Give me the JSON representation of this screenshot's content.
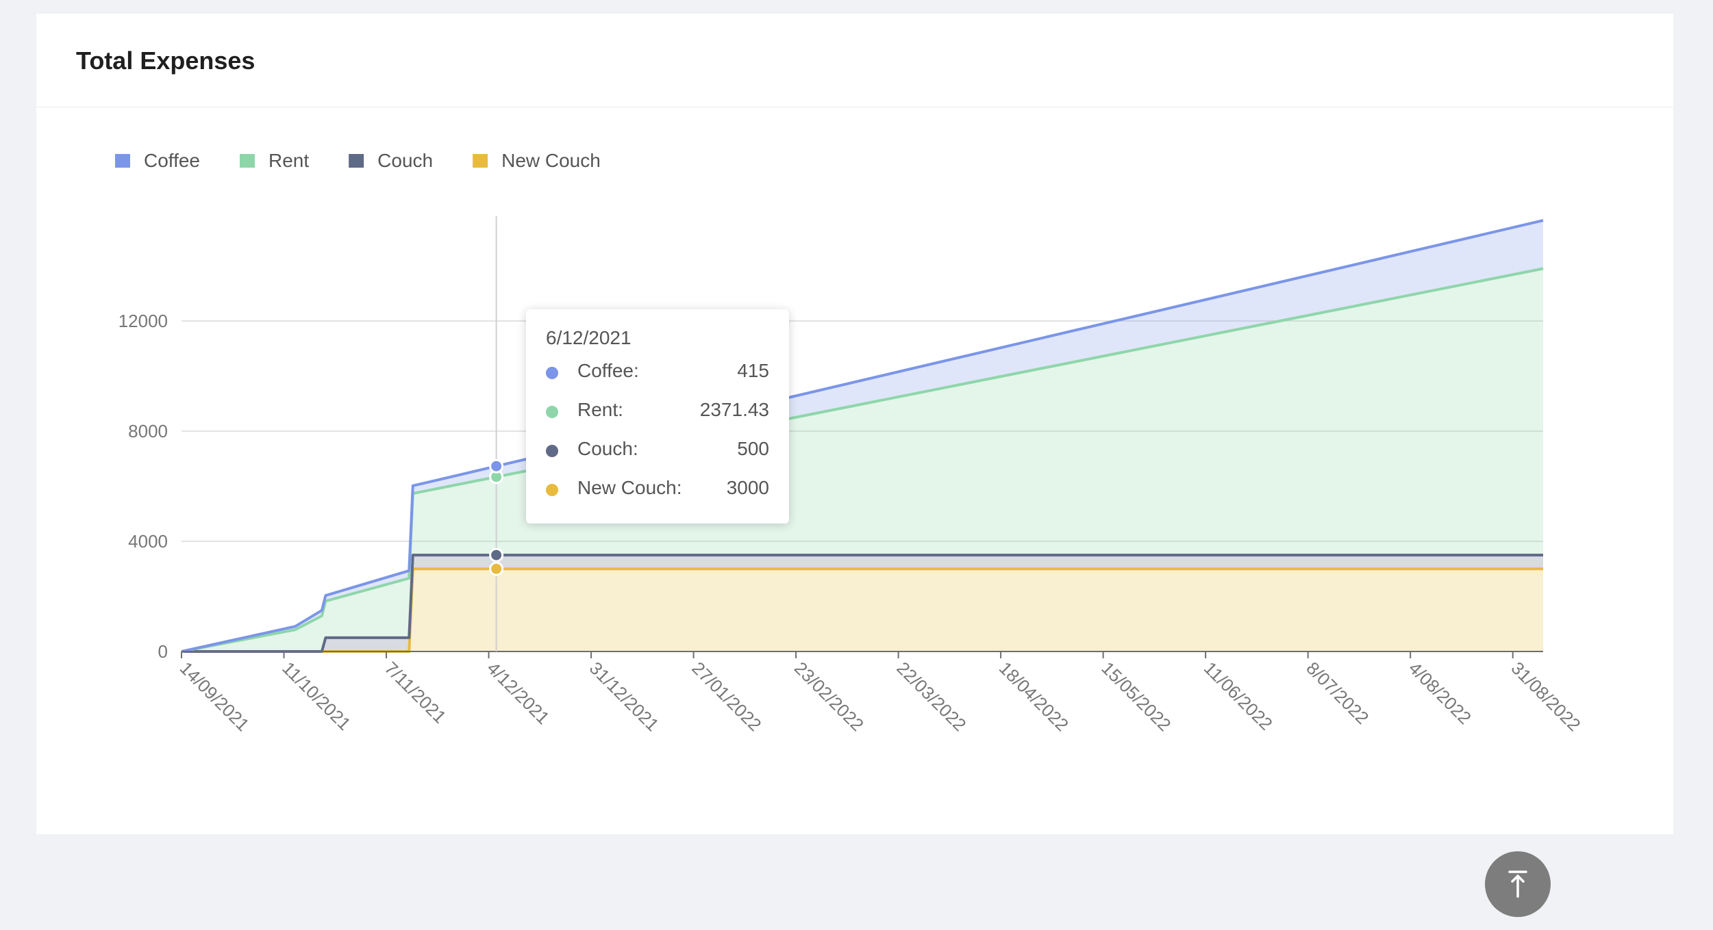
{
  "card": {
    "title": "Total Expenses"
  },
  "chart_data": {
    "type": "area",
    "stacked": true,
    "title": "",
    "xlabel": "",
    "ylabel": "",
    "x_ticks": [
      "14/09/2021",
      "11/10/2021",
      "7/11/2021",
      "4/12/2021",
      "31/12/2021",
      "27/01/2022",
      "23/02/2022",
      "22/03/2022",
      "18/04/2022",
      "15/05/2022",
      "11/06/2022",
      "8/07/2022",
      "4/08/2022",
      "31/08/2022"
    ],
    "x_range": [
      "14/09/2021",
      "8/09/2022"
    ],
    "y_ticks": [
      0,
      4000,
      8000,
      12000
    ],
    "ylim": [
      0,
      15800
    ],
    "grid": true,
    "legend_position": "top-left",
    "series": [
      {
        "name": "New Couch",
        "color": "#e8bb3f",
        "points": [
          [
            "14/09/2021",
            0
          ],
          [
            "13/11/2021",
            0
          ],
          [
            "14/11/2021",
            3000
          ],
          [
            "8/09/2022",
            3000
          ]
        ]
      },
      {
        "name": "Couch",
        "color": "#5f6a86",
        "points": [
          [
            "14/09/2021",
            0
          ],
          [
            "21/10/2021",
            0
          ],
          [
            "22/10/2021",
            500
          ],
          [
            "8/09/2022",
            500
          ]
        ]
      },
      {
        "name": "Rent",
        "color": "#8ed6a9",
        "points": [
          [
            "14/09/2021",
            0
          ],
          [
            "14/10/2021",
            792
          ],
          [
            "21/10/2021",
            1292
          ],
          [
            "13/11/2021",
            2158
          ],
          [
            "14/11/2021",
            2236
          ],
          [
            "8/09/2022",
            10400
          ]
        ]
      },
      {
        "name": "Coffee",
        "color": "#7b95e8",
        "points": [
          [
            "14/09/2021",
            0
          ],
          [
            "14/10/2021",
            120
          ],
          [
            "21/10/2021",
            200
          ],
          [
            "13/11/2021",
            275
          ],
          [
            "14/11/2021",
            280
          ],
          [
            "8/09/2022",
            1750
          ]
        ]
      }
    ],
    "legend_order": [
      "Coffee",
      "Rent",
      "Couch",
      "New Couch"
    ],
    "tooltip": {
      "date": "6/12/2021",
      "x": "6/12/2021",
      "rows": [
        {
          "name": "Coffee",
          "label": "Coffee:",
          "value": "415",
          "color": "#7b95e8"
        },
        {
          "name": "Rent",
          "label": "Rent:",
          "value": "2371.43",
          "color": "#8ed6a9"
        },
        {
          "name": "Couch",
          "label": "Couch:",
          "value": "500",
          "color": "#5f6a86"
        },
        {
          "name": "New Couch",
          "label": "New Couch:",
          "value": "3000",
          "color": "#e8bb3f"
        }
      ]
    }
  },
  "scroll_top": {
    "icon": "arrow-up-to-line-icon"
  }
}
